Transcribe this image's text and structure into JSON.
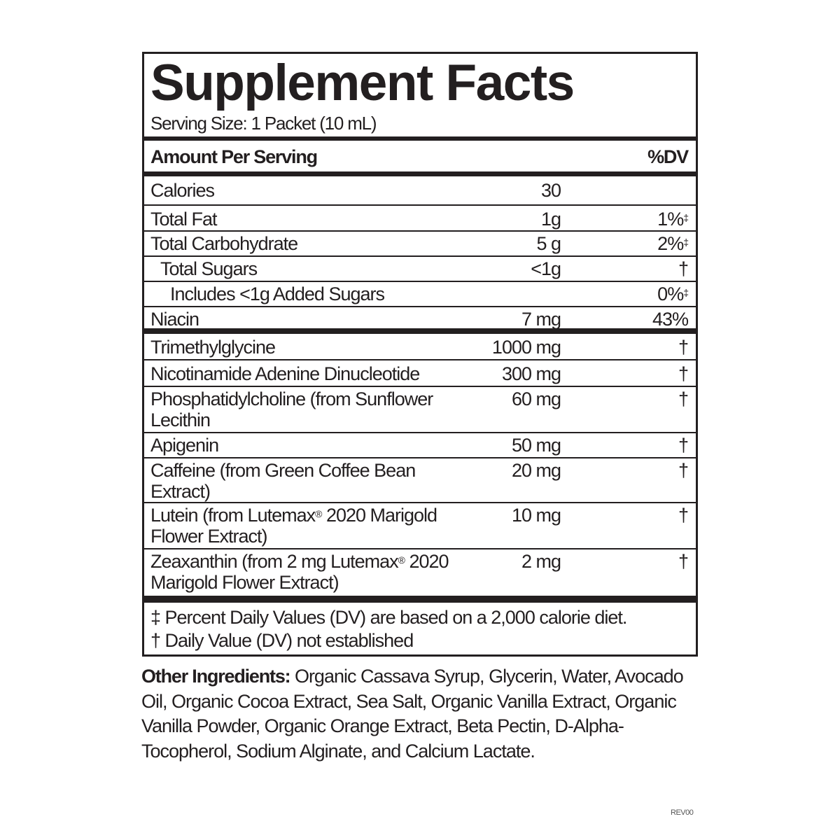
{
  "title": "Supplement Facts",
  "serving_size": "Serving Size: 1 Packet (10 mL)",
  "header": {
    "amount": "Amount Per Serving",
    "dv": "%DV"
  },
  "nutrients": [
    {
      "name": "Calories",
      "amount": "30",
      "dv": ""
    },
    {
      "name": "Total Fat",
      "amount": "1g",
      "dv": "1%",
      "mark": "‡"
    },
    {
      "name": "Total Carbohydrate",
      "amount": "5 g",
      "dv": "2%",
      "mark": "‡"
    },
    {
      "name": "Total Sugars",
      "amount": "<1g",
      "dv": "†",
      "indent": 1
    },
    {
      "name": "Includes <1g Added Sugars",
      "amount": "",
      "dv": "0%",
      "mark": "‡",
      "indent": 2
    },
    {
      "name": "Niacin",
      "amount": "7 mg",
      "dv": "43%"
    }
  ],
  "ingredients": [
    {
      "name": "Trimethylglycine",
      "amount": "1000 mg",
      "dv": "†"
    },
    {
      "name": "Nicotinamide Adenine Dinucleotide",
      "amount": "300 mg",
      "dv": "†"
    },
    {
      "name": "Phosphatidylcholine (from Sunflower Lecithin",
      "amount": "60 mg",
      "dv": "†"
    },
    {
      "name": "Apigenin",
      "amount": "50 mg",
      "dv": "†"
    },
    {
      "name": "Caffeine (from Green Coffee Bean Extract)",
      "amount": "20 mg",
      "dv": "†"
    },
    {
      "name_html_parts": [
        "Lutein (from Lutemax",
        "®",
        " 2020 Marigold Flower Extract)"
      ],
      "amount": "10 mg",
      "dv": "†"
    },
    {
      "name_html_parts": [
        "Zeaxanthin (from 2 mg Lutemax",
        "®",
        " 2020 Marigold Flower Extract)"
      ],
      "amount": "2 mg",
      "dv": "†"
    }
  ],
  "footnotes": [
    "‡ Percent Daily Values (DV) are based on a 2,000 calorie diet.",
    "† Daily Value (DV) not established"
  ],
  "other_ingredients": {
    "label": "Other Ingredients:",
    "text": " Organic Cassava Syrup, Glycerin, Water, Avocado Oil, Organic Cocoa Extract, Sea Salt, Organic Vanilla Extract, Organic Vanilla Powder, Organic Orange Extract, Beta Pectin, D-Alpha-Tocopherol, Sodium Alginate, and Calcium Lactate."
  },
  "revision": "REV00"
}
